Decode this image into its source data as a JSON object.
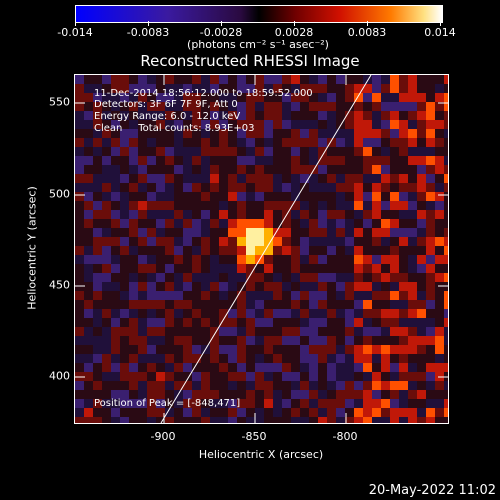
{
  "colorbar": {
    "tick_labels": [
      "-0.014",
      "-0.0083",
      "-0.0028",
      "0.0028",
      "0.0083",
      "0.014"
    ],
    "units": "(photons cm⁻² s⁻¹ asec⁻²)",
    "colors": [
      "#0000ff",
      "#2a0a40",
      "#000000",
      "#d01000",
      "#ff7a00",
      "#ffffff"
    ]
  },
  "title": "Reconstructed RHESSI Image",
  "annotations": {
    "line1": "11-Dec-2014 18:56:12.000 to 18:59:52.000",
    "line2": "Detectors: 3F 6F 7F 9F, Att 0",
    "line3": "Energy Range: 6.0 - 12.0 keV",
    "line4": "Clean     Total counts: 8.93E+03",
    "peak": "Position of Peak = [-848,471]"
  },
  "axes": {
    "xlabel": "Heliocentric X (arcsec)",
    "ylabel": "Heliocentric Y (arcsec)",
    "xticks": [
      "-900",
      "-850",
      "-800"
    ],
    "yticks": [
      "550",
      "500",
      "450",
      "400"
    ]
  },
  "footer_date": "20-May-2022 11:02"
}
